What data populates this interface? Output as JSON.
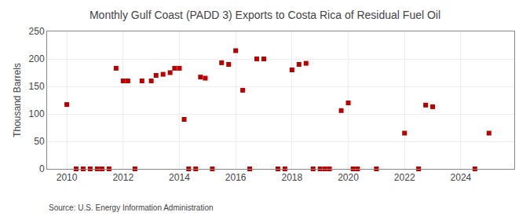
{
  "chart_data": {
    "type": "scatter",
    "title": "Monthly Gulf Coast (PADD 3) Exports to Costa Rica of Residual Fuel Oil",
    "ylabel": "Thousand Barrels",
    "annotations": [
      "Source: U.S. Energy Information Administration"
    ],
    "color": "#bb0000",
    "marker": "square",
    "grid": true,
    "xlim": [
      2009.3,
      2025.9
    ],
    "xticks": [
      2010,
      2012,
      2014,
      2016,
      2018,
      2020,
      2022,
      2024
    ],
    "ylim": [
      0,
      250
    ],
    "yticks": [
      0,
      50,
      100,
      150,
      200,
      250
    ],
    "x": [
      2010.0,
      2010.33,
      2010.58,
      2010.83,
      2011.08,
      2011.25,
      2011.5,
      2011.75,
      2012.0,
      2012.17,
      2012.42,
      2012.67,
      2013.0,
      2013.17,
      2013.42,
      2013.67,
      2013.83,
      2014.0,
      2014.17,
      2014.33,
      2014.58,
      2014.75,
      2014.92,
      2015.17,
      2015.5,
      2015.75,
      2016.0,
      2016.25,
      2016.5,
      2016.75,
      2017.0,
      2017.5,
      2017.75,
      2018.0,
      2018.25,
      2018.5,
      2018.75,
      2019.0,
      2019.17,
      2019.33,
      2019.75,
      2020.0,
      2020.17,
      2020.33,
      2021.0,
      2022.0,
      2022.5,
      2022.75,
      2023.0,
      2024.5,
      2025.0
    ],
    "values": [
      117,
      0,
      0,
      0,
      0,
      0,
      0,
      183,
      160,
      160,
      0,
      160,
      160,
      170,
      172,
      175,
      183,
      183,
      90,
      0,
      0,
      167,
      165,
      0,
      193,
      190,
      215,
      143,
      0,
      200,
      200,
      0,
      0,
      180,
      190,
      192,
      0,
      0,
      0,
      0,
      106,
      120,
      0,
      0,
      0,
      65,
      0,
      116,
      113,
      0,
      65
    ]
  }
}
